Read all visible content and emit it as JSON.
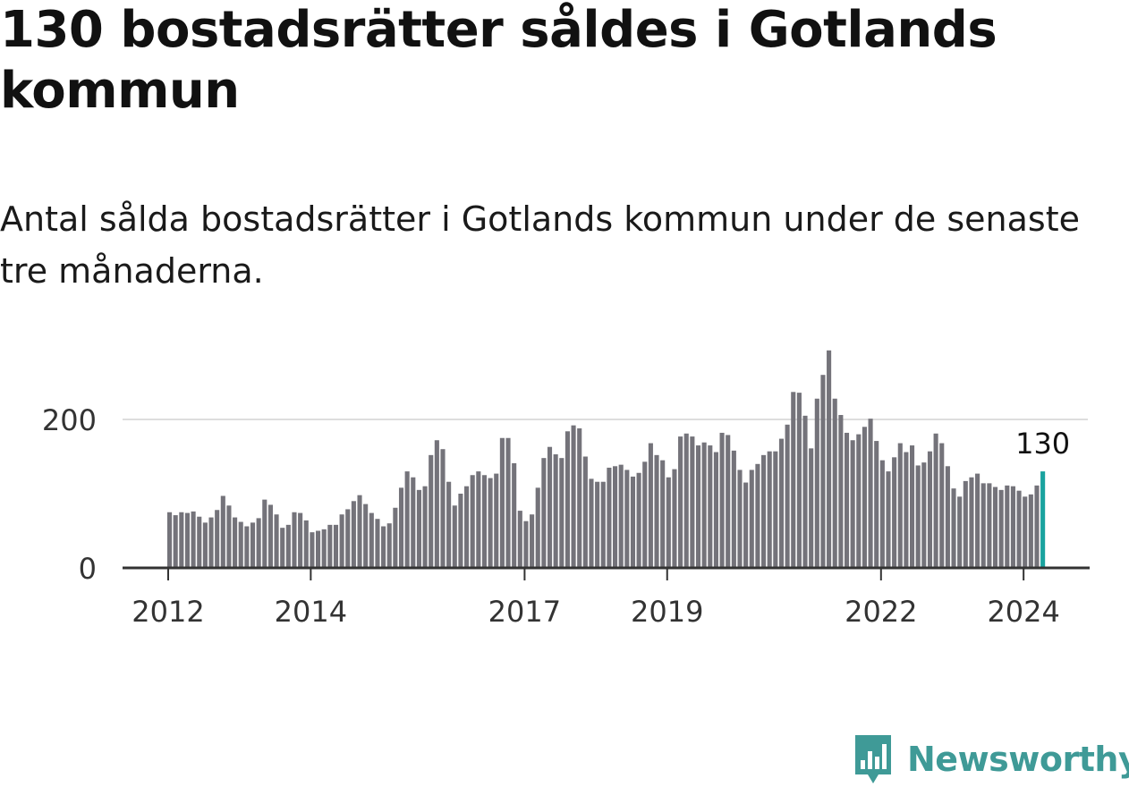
{
  "title": "130 bostadsrätter såldes i Gotlands kommun",
  "subtitle": "Antal sålda bostadsrätter i Gotlands kommun under de senaste tre månaderna.",
  "brand": {
    "name": "Newsworthy",
    "icon": "newsworthy-logo-icon",
    "color": "#3f9a97"
  },
  "colors": {
    "bar": "#74737a",
    "highlight": "#1aa39f",
    "gridline": "#dddddd",
    "axis": "#333333"
  },
  "chart_data": {
    "type": "bar",
    "title": "130 bostadsrätter såldes i Gotlands kommun",
    "subtitle": "Antal sålda bostadsrätter i Gotlands kommun under de senaste tre månaderna.",
    "x_start": "2012-01",
    "x_frequency": "monthly",
    "x_ticks": [
      "2012",
      "2014",
      "2017",
      "2019",
      "2022",
      "2024"
    ],
    "y_ticks": [
      0,
      200
    ],
    "ylim": [
      0,
      300
    ],
    "grid": true,
    "highlight_label": "130",
    "values": [
      75,
      71,
      75,
      74,
      76,
      69,
      61,
      68,
      78,
      97,
      84,
      68,
      62,
      56,
      61,
      67,
      92,
      85,
      72,
      54,
      58,
      75,
      74,
      64,
      48,
      50,
      52,
      58,
      58,
      72,
      79,
      90,
      98,
      86,
      74,
      66,
      56,
      60,
      81,
      108,
      130,
      122,
      105,
      110,
      152,
      172,
      160,
      116,
      84,
      100,
      110,
      125,
      130,
      125,
      121,
      127,
      175,
      175,
      141,
      77,
      63,
      72,
      108,
      148,
      163,
      153,
      148,
      184,
      192,
      188,
      150,
      120,
      116,
      116,
      135,
      137,
      139,
      132,
      123,
      128,
      143,
      168,
      152,
      145,
      122,
      133,
      177,
      181,
      177,
      165,
      169,
      165,
      156,
      182,
      179,
      158,
      132,
      115,
      132,
      140,
      152,
      157,
      157,
      174,
      193,
      237,
      236,
      205,
      161,
      228,
      260,
      293,
      228,
      206,
      182,
      172,
      180,
      190,
      201,
      171,
      145,
      130,
      149,
      168,
      156,
      165,
      138,
      142,
      157,
      181,
      168,
      137,
      107,
      96,
      117,
      122,
      127,
      114,
      114,
      109,
      105,
      111,
      110,
      104,
      96,
      99,
      111,
      130
    ]
  }
}
